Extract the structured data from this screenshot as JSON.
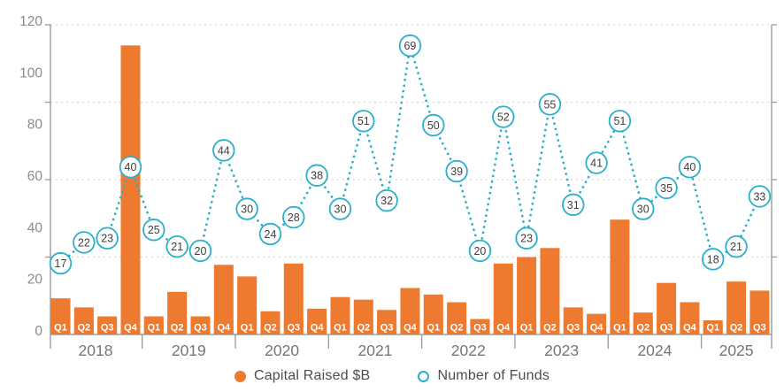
{
  "chart_data": {
    "type": "combo",
    "title": "",
    "categories": [
      "2018 Q1",
      "2018 Q2",
      "2018 Q3",
      "2018 Q4",
      "2019 Q1",
      "2019 Q2",
      "2019 Q3",
      "2019 Q4",
      "2020 Q1",
      "2020 Q2",
      "2020 Q3",
      "2020 Q4",
      "2021 Q1",
      "2021 Q2",
      "2021 Q3",
      "2021 Q4",
      "2022 Q1",
      "2022 Q2",
      "2022 Q3",
      "2022 Q4",
      "2023 Q1",
      "2023 Q2",
      "2023 Q3",
      "2023 Q4",
      "2024 Q1",
      "2024 Q2",
      "2024 Q3",
      "2024 Q4",
      "2025 Q1",
      "2025 Q2",
      "2025 Q3"
    ],
    "quarter_labels": [
      "Q1",
      "Q2",
      "Q3",
      "Q4",
      "Q1",
      "Q2",
      "Q3",
      "Q4",
      "Q1",
      "Q2",
      "Q3",
      "Q4",
      "Q1",
      "Q2",
      "Q3",
      "Q4",
      "Q1",
      "Q2",
      "Q3",
      "Q4",
      "Q1",
      "Q2",
      "Q3",
      "Q4",
      "Q1",
      "Q2",
      "Q3",
      "Q4",
      "Q1",
      "Q2",
      "Q3"
    ],
    "year_groups": [
      {
        "label": "2018",
        "count": 4
      },
      {
        "label": "2019",
        "count": 4
      },
      {
        "label": "2020",
        "count": 4
      },
      {
        "label": "2021",
        "count": 4
      },
      {
        "label": "2022",
        "count": 4
      },
      {
        "label": "2023",
        "count": 4
      },
      {
        "label": "2024",
        "count": 4
      },
      {
        "label": "2025",
        "count": 3
      }
    ],
    "series": [
      {
        "name": "Capital Raised $B",
        "type": "bar",
        "color": "#ED7A2F",
        "values": [
          14,
          10.5,
          7,
          112,
          7,
          16.5,
          7,
          27,
          22.5,
          9,
          27.5,
          10,
          14.5,
          13.5,
          9.5,
          18,
          15.5,
          12.5,
          6,
          27.5,
          30,
          33.5,
          10.5,
          8,
          44.5,
          8.5,
          20,
          12.5,
          4,
          20.5,
          17
        ]
      },
      {
        "name": "Number of Funds",
        "type": "line",
        "style": "dotted-line-with-labeled-circle-markers",
        "color": "#2BB0CC",
        "values": [
          17,
          22,
          23,
          40,
          25,
          21,
          20,
          44,
          30,
          24,
          28,
          38,
          30,
          51,
          32,
          69,
          50,
          39,
          20,
          52,
          23,
          55,
          31,
          41,
          51,
          30,
          35,
          40,
          18,
          21,
          33
        ]
      }
    ],
    "left_axis": {
      "tick_labels": [
        "0",
        "20",
        "40",
        "60",
        "80",
        "100",
        "120"
      ],
      "tick_values": [
        0,
        20,
        40,
        60,
        80,
        100,
        120
      ],
      "min": 0,
      "max": 120,
      "gridline_values": [
        30,
        60,
        90,
        120
      ],
      "grid_style": "dotted"
    },
    "right_axis": {
      "labels_visible": false,
      "implied_max": 75
    },
    "legend": {
      "position": "bottom-center",
      "items": [
        {
          "label": "Capital Raised $B",
          "marker": "filled-dot",
          "color": "#ED7A2F"
        },
        {
          "label": "Number of Funds",
          "marker": "open-circle",
          "color": "#2BB0CC"
        }
      ]
    },
    "colors": {
      "bar_orange": "#ED7A2F",
      "line_teal": "#2BB0CC",
      "gridline": "#D8D8D8",
      "axis": "#9B9B9B",
      "axis_label": "#8C8C8C",
      "year_label": "#757575",
      "marker_number": "#3F3F3F",
      "quarter_label_text": "#FFFFFF"
    }
  }
}
